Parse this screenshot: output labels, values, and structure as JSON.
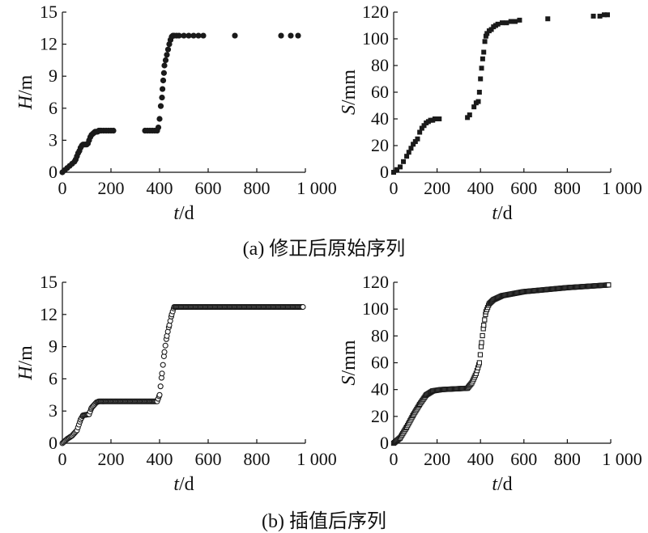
{
  "captions": {
    "a": "(a) 修正后原始序列",
    "b": "(b) 插值后序列"
  },
  "chart_data": [
    {
      "id": "a-left",
      "type": "scatter",
      "marker": "filled-circle",
      "ylabel": {
        "var": "H",
        "unit": "/m"
      },
      "xlabel": {
        "var": "t",
        "unit": "/d"
      },
      "xlim": [
        0,
        1000
      ],
      "ylim": [
        0,
        15
      ],
      "xticks": [
        "0",
        "200",
        "400",
        "600",
        "800",
        "1 000"
      ],
      "yticks": [
        "0",
        "3",
        "6",
        "9",
        "12",
        "15"
      ],
      "x": [
        0,
        10,
        20,
        30,
        40,
        50,
        55,
        60,
        65,
        70,
        75,
        80,
        85,
        90,
        95,
        100,
        105,
        110,
        115,
        120,
        125,
        130,
        135,
        140,
        145,
        150,
        155,
        160,
        170,
        180,
        190,
        200,
        210,
        340,
        350,
        360,
        370,
        380,
        390,
        395,
        400,
        405,
        410,
        412,
        415,
        418,
        420,
        425,
        430,
        435,
        440,
        445,
        450,
        455,
        460,
        470,
        480,
        500,
        520,
        540,
        560,
        580,
        710,
        900,
        940,
        970
      ],
      "y": [
        0,
        0.2,
        0.4,
        0.6,
        0.8,
        1.0,
        1.2,
        1.5,
        1.8,
        2.0,
        2.3,
        2.5,
        2.6,
        2.6,
        2.6,
        2.6,
        2.7,
        3.0,
        3.3,
        3.5,
        3.6,
        3.7,
        3.8,
        3.8,
        3.8,
        3.9,
        3.9,
        3.9,
        3.9,
        3.9,
        3.9,
        3.9,
        3.9,
        3.9,
        3.9,
        3.9,
        3.9,
        3.9,
        3.9,
        4.2,
        5.0,
        6.2,
        7.0,
        7.8,
        8.6,
        9.3,
        10.0,
        10.5,
        11.0,
        11.5,
        12.0,
        12.4,
        12.7,
        12.8,
        12.8,
        12.8,
        12.8,
        12.8,
        12.8,
        12.8,
        12.8,
        12.8,
        12.8,
        12.8,
        12.8,
        12.8
      ]
    },
    {
      "id": "a-right",
      "type": "scatter",
      "marker": "filled-square",
      "ylabel": {
        "var": "S",
        "unit": "/mm"
      },
      "xlabel": {
        "var": "t",
        "unit": "/d"
      },
      "xlim": [
        0,
        1000
      ],
      "ylim": [
        0,
        120
      ],
      "xticks": [
        "0",
        "200",
        "400",
        "600",
        "800",
        "1 000"
      ],
      "yticks": [
        "0",
        "20",
        "40",
        "60",
        "80",
        "100",
        "120"
      ],
      "x": [
        0,
        15,
        30,
        45,
        60,
        70,
        80,
        90,
        100,
        110,
        120,
        130,
        140,
        150,
        160,
        170,
        180,
        190,
        200,
        210,
        340,
        350,
        370,
        380,
        390,
        395,
        400,
        405,
        410,
        415,
        420,
        425,
        430,
        440,
        450,
        460,
        470,
        480,
        500,
        520,
        540,
        560,
        580,
        710,
        920,
        950,
        970,
        985
      ],
      "y": [
        0,
        2,
        4,
        8,
        12,
        15,
        18,
        21,
        23,
        25,
        30,
        33,
        35,
        37,
        38,
        39,
        39,
        40,
        40,
        40,
        41,
        43,
        49,
        52,
        53,
        60,
        70,
        78,
        85,
        90,
        98,
        102,
        104,
        106,
        107,
        109,
        110,
        111,
        112,
        112,
        113,
        113,
        114,
        115,
        117,
        117,
        118,
        118
      ]
    },
    {
      "id": "b-left",
      "type": "scatter",
      "marker": "open-circle",
      "ylabel": {
        "var": "H",
        "unit": "/m"
      },
      "xlabel": {
        "var": "t",
        "unit": "/d"
      },
      "xlim": [
        0,
        1000
      ],
      "ylim": [
        0,
        15
      ],
      "xticks": [
        "0",
        "200",
        "400",
        "600",
        "800",
        "1 000"
      ],
      "yticks": [
        "0",
        "3",
        "6",
        "9",
        "12",
        "15"
      ],
      "profile": [
        [
          0,
          0
        ],
        [
          20,
          0.4
        ],
        [
          40,
          0.7
        ],
        [
          60,
          1.2
        ],
        [
          75,
          2.2
        ],
        [
          85,
          2.6
        ],
        [
          110,
          2.7
        ],
        [
          120,
          3.3
        ],
        [
          140,
          3.8
        ],
        [
          150,
          3.9
        ],
        [
          390,
          3.9
        ],
        [
          400,
          4.5
        ],
        [
          410,
          6.5
        ],
        [
          420,
          8.5
        ],
        [
          430,
          10.0
        ],
        [
          440,
          11.0
        ],
        [
          450,
          12.0
        ],
        [
          460,
          12.7
        ],
        [
          990,
          12.7
        ]
      ]
    },
    {
      "id": "b-right",
      "type": "scatter",
      "marker": "open-square",
      "ylabel": {
        "var": "S",
        "unit": "/mm"
      },
      "xlabel": {
        "var": "t",
        "unit": "/d"
      },
      "xlim": [
        0,
        1000
      ],
      "ylim": [
        0,
        120
      ],
      "xticks": [
        "0",
        "200",
        "400",
        "600",
        "800",
        "1 000"
      ],
      "yticks": [
        "0",
        "20",
        "40",
        "60",
        "80",
        "100",
        "120"
      ],
      "profile": [
        [
          0,
          0
        ],
        [
          30,
          4
        ],
        [
          60,
          12
        ],
        [
          90,
          21
        ],
        [
          120,
          29
        ],
        [
          150,
          36
        ],
        [
          180,
          39
        ],
        [
          220,
          40
        ],
        [
          340,
          41
        ],
        [
          360,
          45
        ],
        [
          380,
          52
        ],
        [
          395,
          60
        ],
        [
          405,
          75
        ],
        [
          415,
          88
        ],
        [
          425,
          98
        ],
        [
          440,
          104
        ],
        [
          460,
          107
        ],
        [
          500,
          110
        ],
        [
          600,
          113
        ],
        [
          800,
          116
        ],
        [
          990,
          118
        ]
      ]
    }
  ]
}
